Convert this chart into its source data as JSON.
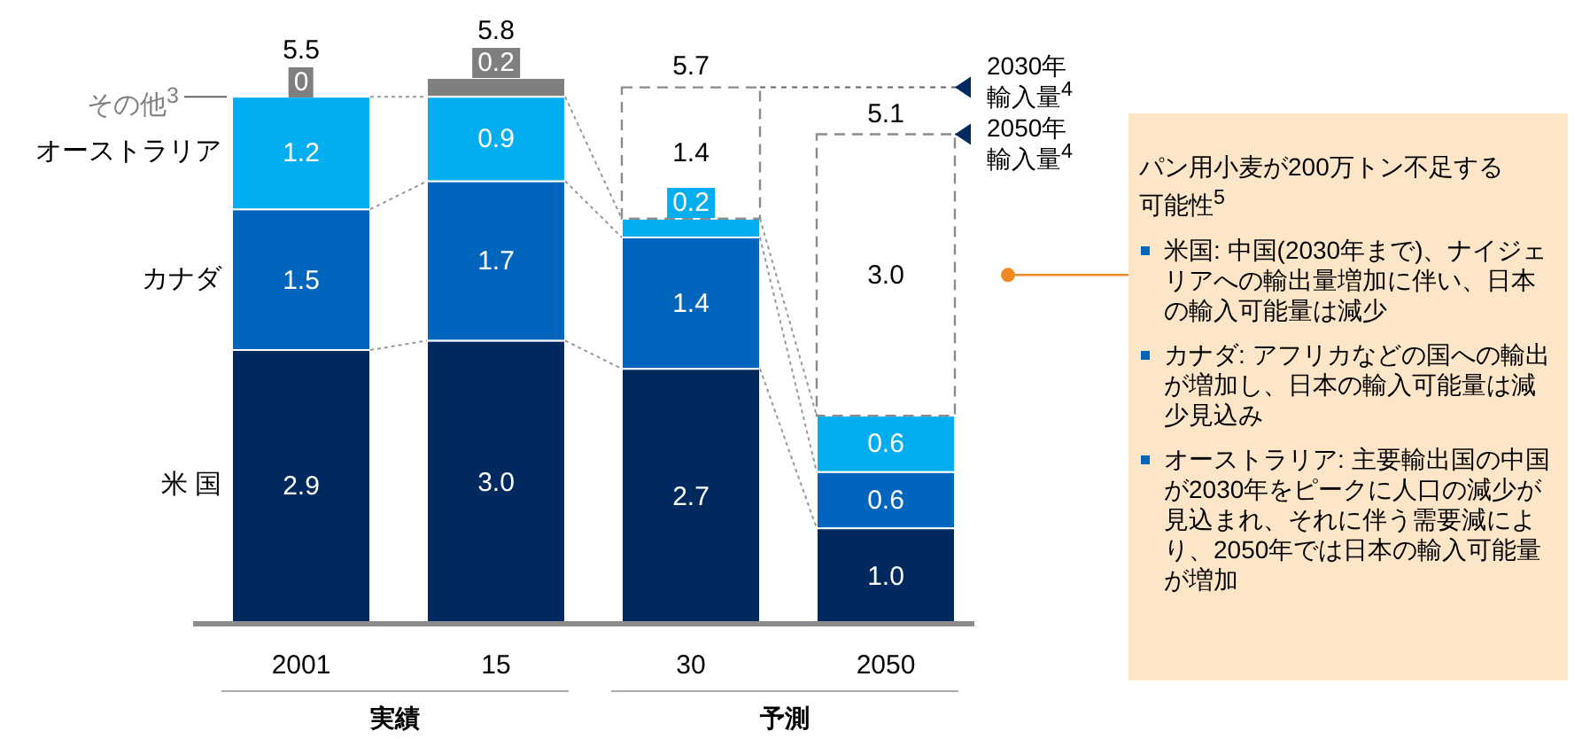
{
  "chart_data": {
    "type": "bar",
    "stacked": true,
    "categories": [
      "2001",
      "15",
      "30",
      "2050"
    ],
    "series": [
      {
        "name": "米 国",
        "color": "#002960",
        "values": [
          2.9,
          3.0,
          2.7,
          1.0
        ],
        "value_labels": [
          "2.9",
          "3.0",
          "2.7",
          "1.0"
        ]
      },
      {
        "name": "カナダ",
        "color": "#0065bd",
        "values": [
          1.5,
          1.7,
          1.4,
          0.6
        ],
        "value_labels": [
          "1.5",
          "1.7",
          "1.4",
          "0.6"
        ]
      },
      {
        "name": "オーストラリア",
        "color": "#00aeef",
        "values": [
          1.2,
          0.9,
          0.2,
          0.6
        ],
        "value_labels": [
          "1.2",
          "0.9",
          "0.2",
          "0.6"
        ]
      },
      {
        "name": "その他$^{3}$",
        "color": "#7f7f7f",
        "values": [
          0,
          0.2,
          null,
          null
        ],
        "value_labels": [
          "0",
          "0.2",
          null,
          null
        ]
      },
      {
        "color": "#ffffff",
        "line_style": "dashed",
        "values": [
          null,
          null,
          1.4,
          3.0
        ],
        "value_labels": [
          null,
          null,
          "1.4",
          "3.0"
        ]
      }
    ],
    "totals": [
      "5.5",
      "5.8",
      "5.7",
      "5.1"
    ],
    "annotations": [
      "2030年輸入量$^{4}$",
      "2050年輸入量$^{4}$",
      "パン用小麦が200万トン不足する可能性$^{5}$",
      "米国: 中国(2030年まで)、ナイジェリアへの輸出量増加に伴い、日本の輸入可能量は減少",
      "カナダ: アフリカなどの国への輸出が増加し、日本の輸入可能量は減少見込み",
      "オーストラリア: 主要輸出国の中国が2030年をピークに人口の減少が見込まれ、それに伴う需要減により、2050年では日本の輸入可能量が増加",
      "実績",
      "予測"
    ]
  }
}
